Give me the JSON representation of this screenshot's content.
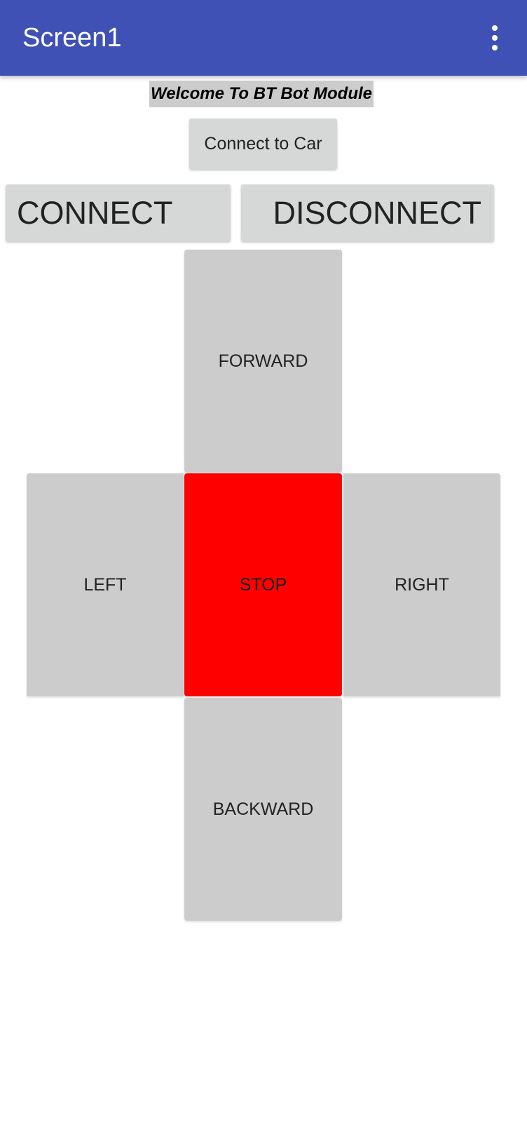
{
  "app_bar": {
    "title": "Screen1",
    "menu_icon": "more-vert-icon",
    "color": "#3f51b5"
  },
  "welcome_label": "Welcome To BT Bot Module",
  "buttons": {
    "connect_to_car": "Connect to Car",
    "connect": "CONNECT",
    "disconnect": "DISCONNECT"
  },
  "controls": {
    "forward": "FORWARD",
    "left": "LEFT",
    "stop": "STOP",
    "right": "RIGHT",
    "backward": "BACKWARD",
    "stop_color": "#ff0000",
    "button_color": "#cccccc"
  }
}
